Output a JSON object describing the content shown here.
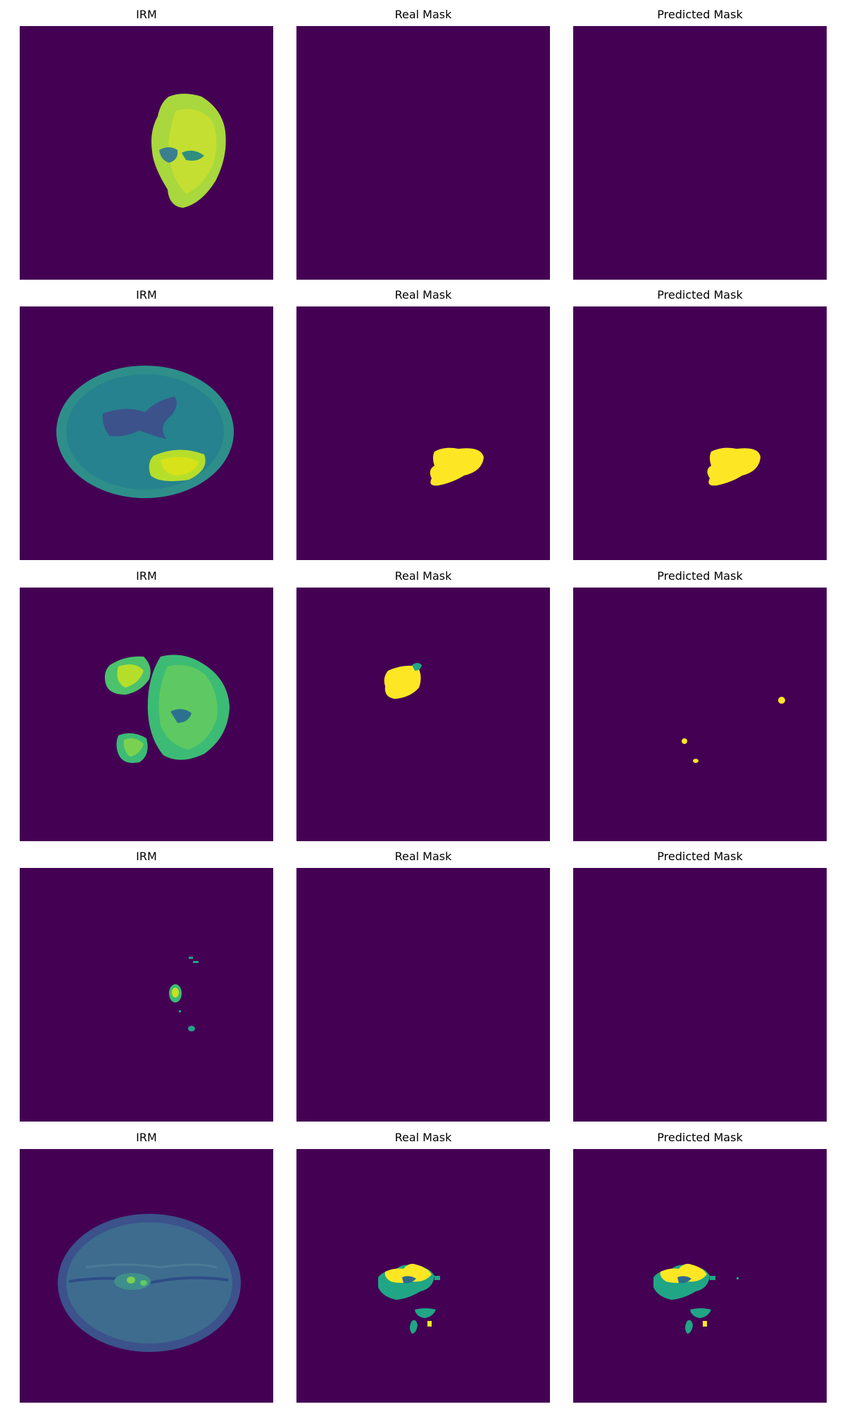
{
  "colors": {
    "background": "#440154",
    "yellow": "#fde725",
    "green": "#21a685",
    "teal": "#31688e",
    "blue": "#3b528b",
    "lime": "#7ad151"
  },
  "rows": [
    {
      "titles": [
        "IRM",
        "Real Mask",
        "Predicted Mask"
      ]
    },
    {
      "titles": [
        "IRM",
        "Real Mask",
        "Predicted Mask"
      ]
    },
    {
      "titles": [
        "IRM",
        "Real Mask",
        "Predicted Mask"
      ]
    },
    {
      "titles": [
        "IRM",
        "Real Mask",
        "Predicted Mask"
      ]
    },
    {
      "titles": [
        "IRM",
        "Real Mask",
        "Predicted Mask"
      ]
    }
  ]
}
